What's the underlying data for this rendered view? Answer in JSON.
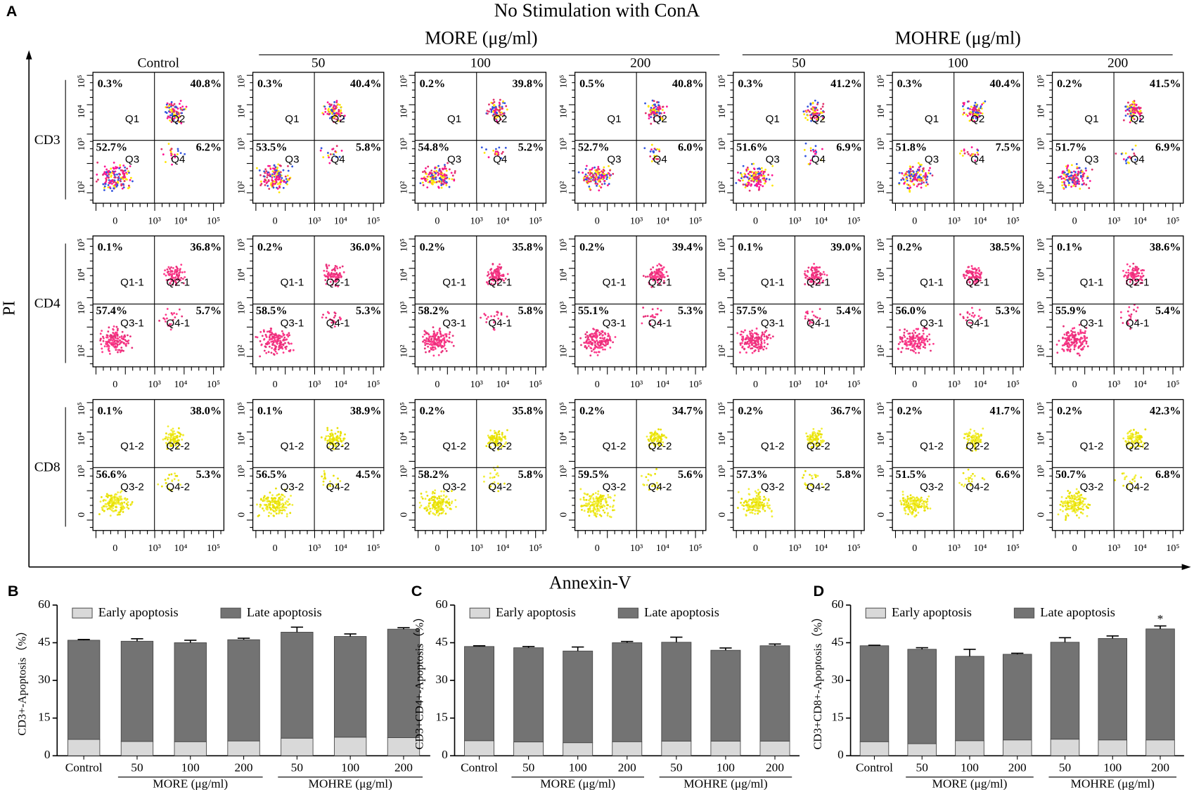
{
  "figure": {
    "panel": "A",
    "title": "No Stimulation with ConA",
    "groups": [
      "MORE (μg/ml)",
      "MOHRE (μg/ml)"
    ],
    "columns": [
      "Control",
      "50",
      "100",
      "200",
      "50",
      "100",
      "200"
    ],
    "y_axis_label": "PI",
    "x_axis_label": "Annexin-V",
    "xticks": [
      "0",
      "10³",
      "10⁴",
      "10⁵"
    ],
    "rows": [
      {
        "label": "CD3",
        "quadrants": [
          "Q1",
          "Q2",
          "Q3",
          "Q4"
        ],
        "yticks": [
          "10²",
          "10³",
          "10⁴",
          "10⁵"
        ],
        "panels": [
          [
            "0.3%",
            "40.8%",
            "52.7%",
            "6.2%"
          ],
          [
            "0.3%",
            "40.4%",
            "53.5%",
            "5.8%"
          ],
          [
            "0.2%",
            "39.8%",
            "54.8%",
            "5.2%"
          ],
          [
            "0.5%",
            "40.8%",
            "52.7%",
            "6.0%"
          ],
          [
            "0.3%",
            "41.2%",
            "51.6%",
            "6.9%"
          ],
          [
            "0.3%",
            "40.4%",
            "51.8%",
            "7.5%"
          ],
          [
            "0.2%",
            "41.5%",
            "51.7%",
            "6.9%"
          ]
        ]
      },
      {
        "label": "CD4",
        "quadrants": [
          "Q1-1",
          "Q2-1",
          "Q3-1",
          "Q4-1"
        ],
        "yticks": [
          "10²",
          "10³",
          "10⁴",
          "10⁵"
        ],
        "panels": [
          [
            "0.1%",
            "36.8%",
            "57.4%",
            "5.7%"
          ],
          [
            "0.2%",
            "36.0%",
            "58.5%",
            "5.3%"
          ],
          [
            "0.2%",
            "35.8%",
            "58.2%",
            "5.8%"
          ],
          [
            "0.2%",
            "39.4%",
            "55.1%",
            "5.3%"
          ],
          [
            "0.1%",
            "39.0%",
            "57.5%",
            "5.4%"
          ],
          [
            "0.2%",
            "38.5%",
            "56.0%",
            "5.3%"
          ],
          [
            "0.1%",
            "38.6%",
            "55.9%",
            "5.4%"
          ]
        ]
      },
      {
        "label": "CD8",
        "quadrants": [
          "Q1-2",
          "Q2-2",
          "Q3-2",
          "Q4-2"
        ],
        "yticks": [
          "0",
          "10³",
          "10⁴",
          "10⁵"
        ],
        "panels": [
          [
            "0.1%",
            "38.0%",
            "56.6%",
            "5.3%"
          ],
          [
            "0.1%",
            "38.9%",
            "56.5%",
            "4.5%"
          ],
          [
            "0.2%",
            "35.8%",
            "58.2%",
            "5.8%"
          ],
          [
            "0.2%",
            "34.7%",
            "59.5%",
            "5.6%"
          ],
          [
            "0.2%",
            "36.7%",
            "57.3%",
            "5.8%"
          ],
          [
            "0.2%",
            "41.7%",
            "51.5%",
            "6.6%"
          ],
          [
            "0.2%",
            "42.3%",
            "50.7%",
            "6.8%"
          ]
        ]
      }
    ]
  },
  "chart_data": [
    {
      "type": "stacked_bar",
      "panel": "B",
      "y_label": "CD3+-Apoptosis（%）",
      "categories": [
        "Control",
        "50",
        "100",
        "200",
        "50",
        "100",
        "200"
      ],
      "groups": [
        "MORE (μg/ml)",
        "MOHRE (μg/ml)"
      ],
      "ylim": [
        0,
        60
      ],
      "yticks": [
        0,
        15,
        30,
        45,
        60
      ],
      "series": [
        {
          "name": "Early apoptosis",
          "color": "#d9d9d9",
          "values": [
            6.5,
            5.7,
            5.6,
            5.9,
            7.0,
            7.4,
            7.2
          ]
        },
        {
          "name": "Late apoptosis",
          "color": "#737373",
          "values": [
            39.5,
            39.9,
            39.4,
            40.3,
            42.2,
            40.1,
            43.2
          ],
          "errors": [
            0.3,
            1.0,
            1.0,
            0.6,
            2.0,
            1.0,
            0.6
          ]
        }
      ]
    },
    {
      "type": "stacked_bar",
      "panel": "C",
      "y_label": "CD3+CD4+-Apoptosis（%）",
      "categories": [
        "Control",
        "50",
        "100",
        "200",
        "50",
        "100",
        "200"
      ],
      "groups": [
        "MORE (μg/ml)",
        "MOHRE (μg/ml)"
      ],
      "ylim": [
        0,
        60
      ],
      "yticks": [
        0,
        15,
        30,
        45,
        60
      ],
      "series": [
        {
          "name": "Early apoptosis",
          "color": "#d9d9d9",
          "values": [
            6.0,
            5.5,
            5.2,
            5.6,
            5.8,
            5.8,
            5.8
          ]
        },
        {
          "name": "Late apoptosis",
          "color": "#737373",
          "values": [
            37.5,
            37.5,
            36.5,
            39.4,
            39.4,
            36.2,
            38.0
          ],
          "errors": [
            0.3,
            0.5,
            1.6,
            0.5,
            2.0,
            0.9,
            0.7
          ]
        }
      ]
    },
    {
      "type": "stacked_bar",
      "panel": "D",
      "y_label": "CD3+CD8+-Apoptosis（%）",
      "categories": [
        "Control",
        "50",
        "100",
        "200",
        "50",
        "100",
        "200"
      ],
      "groups": [
        "MORE (μg/ml)",
        "MOHRE (μg/ml)"
      ],
      "ylim": [
        0,
        60
      ],
      "yticks": [
        0,
        15,
        30,
        45,
        60
      ],
      "annotation": "*",
      "series": [
        {
          "name": "Early apoptosis",
          "color": "#d9d9d9",
          "values": [
            5.6,
            4.8,
            6.0,
            6.3,
            6.6,
            6.3,
            6.3
          ]
        },
        {
          "name": "Late apoptosis",
          "color": "#737373",
          "values": [
            38.2,
            37.6,
            33.6,
            34.1,
            38.6,
            40.4,
            44.2
          ],
          "errors": [
            0.2,
            0.6,
            2.8,
            0.4,
            1.8,
            1.0,
            1.2
          ]
        }
      ]
    }
  ]
}
